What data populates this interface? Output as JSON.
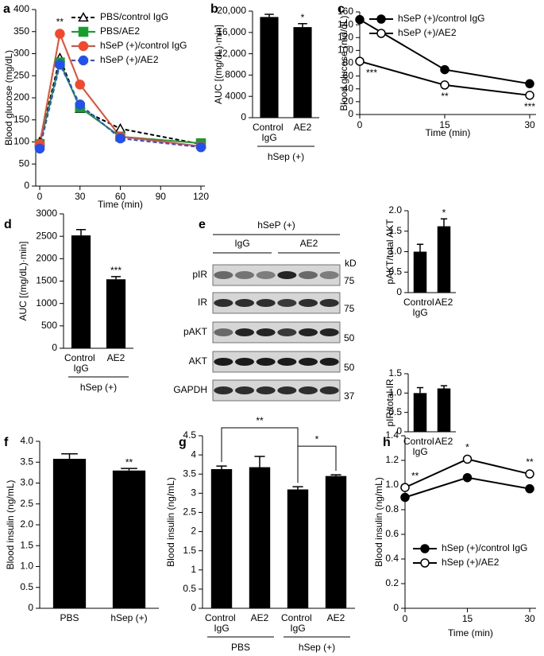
{
  "chart_data": [
    {
      "panel": "a",
      "type": "line",
      "xlabel": "Time (min)",
      "ylabel": "Blood glucose (mg/dL)",
      "x": [
        0,
        15,
        30,
        60,
        120
      ],
      "xlim": [
        0,
        120
      ],
      "xticks": [
        0,
        30,
        60,
        90,
        120
      ],
      "ylim": [
        0,
        400
      ],
      "yticks": [
        0,
        50,
        100,
        150,
        200,
        250,
        300,
        350,
        400
      ],
      "legend": "upper right",
      "series": [
        {
          "name": "PBS/control IgG",
          "color": "#000000",
          "marker": "triangle-open",
          "dashed": true,
          "values": [
            100,
            290,
            175,
            130,
            95
          ]
        },
        {
          "name": "PBS/AE2",
          "color": "#1a9b2e",
          "marker": "square",
          "dashed": false,
          "values": [
            95,
            280,
            178,
            112,
            97
          ]
        },
        {
          "name": "hSeP (+)/control IgG",
          "color": "#f4472c",
          "marker": "circle",
          "dashed": false,
          "values": [
            95,
            345,
            230,
            112,
            90
          ],
          "sig": [
            null,
            "**",
            null,
            null,
            null
          ]
        },
        {
          "name": "hSeP (+)/AE2",
          "color": "#2350f0",
          "marker": "circle",
          "dashed": true,
          "values": [
            85,
            275,
            185,
            108,
            88
          ]
        }
      ]
    },
    {
      "panel": "b",
      "type": "bar",
      "ylabel": "AUC [(mg/dL)·min]",
      "categories": [
        "Control IgG",
        "AE2"
      ],
      "values": [
        18900,
        17000
      ],
      "errors": [
        500,
        650
      ],
      "sig": [
        null,
        "*"
      ],
      "groups": [
        "hSep (+)"
      ],
      "color": "#000000",
      "ylim": [
        0,
        20000
      ],
      "yticks": [
        0,
        4000,
        8000,
        {
          "value": 12000,
          "label": "12,000"
        },
        {
          "value": 16000,
          "label": "16,000"
        },
        {
          "value": 20000,
          "label": "20,000"
        }
      ]
    },
    {
      "panel": "c",
      "type": "line",
      "xlabel": "Time (min)",
      "ylabel": "Blood glucose (md/dL)",
      "x": [
        0,
        15,
        30
      ],
      "xlim": [
        0,
        30
      ],
      "xticks": [
        0,
        15,
        30
      ],
      "ylim": [
        0,
        160
      ],
      "yticks": [
        0,
        20,
        40,
        60,
        80,
        100,
        120,
        140,
        160
      ],
      "legend": "upper right",
      "series": [
        {
          "name": "hSeP (+)/control IgG",
          "color": "#000000",
          "marker": "circle",
          "dashed": false,
          "values": [
            148,
            70,
            48
          ]
        },
        {
          "name": "hSeP (+)/AE2",
          "color": "#000000",
          "marker": "circle-open",
          "dashed": false,
          "values": [
            83,
            46,
            30
          ],
          "sig": [
            "***",
            "**",
            "***"
          ]
        }
      ]
    },
    {
      "panel": "d",
      "type": "bar",
      "ylabel": "AUC [(mg/dL)·min]",
      "categories": [
        "Control IgG",
        "AE2"
      ],
      "values": [
        2520,
        1540
      ],
      "errors": [
        130,
        60
      ],
      "sig": [
        null,
        "***"
      ],
      "groups": [
        "hSep (+)"
      ],
      "color": "#000000",
      "ylim": [
        0,
        3000
      ],
      "yticks": [
        0,
        500,
        1000,
        1500,
        2000,
        2500,
        3000
      ]
    },
    {
      "type": "bar",
      "ylabel": "pAKT/total AKT",
      "categories": [
        "Control IgG",
        "AE2"
      ],
      "values": [
        1.0,
        1.62
      ],
      "errors": [
        0.18,
        0.18
      ],
      "sig": [
        null,
        "*"
      ],
      "color": "#000000",
      "ylim": [
        0,
        2
      ],
      "yticks": [
        0,
        0.5,
        {
          "value": 1,
          "label": "1.0"
        },
        1.5,
        {
          "value": 2,
          "label": "2.0"
        }
      ]
    },
    {
      "type": "bar",
      "ylabel": "pIR/total IR",
      "categories": [
        "Control IgG",
        "AE2"
      ],
      "values": [
        1.0,
        1.12
      ],
      "errors": [
        0.14,
        0.07
      ],
      "color": "#000000",
      "ylim": [
        0,
        1.5
      ],
      "yticks": [
        0,
        0.5,
        {
          "value": 1,
          "label": "1.0"
        },
        1.5
      ]
    },
    {
      "panel": "f",
      "type": "bar",
      "ylabel": "Blood insulin (ng/mL)",
      "categories": [
        "PBS",
        "hSep (+)"
      ],
      "values": [
        3.58,
        3.3
      ],
      "errors": [
        0.12,
        0.05
      ],
      "sig": [
        null,
        "**"
      ],
      "color": "#000000",
      "ylim": [
        0,
        4
      ],
      "yticks": [
        0,
        0.5,
        {
          "value": 1,
          "label": "1.0"
        },
        1.5,
        {
          "value": 2,
          "label": "2.0"
        },
        2.5,
        {
          "value": 3,
          "label": "3.0"
        },
        3.5,
        {
          "value": 4,
          "label": "4.0"
        }
      ]
    },
    {
      "panel": "g",
      "type": "bar",
      "ylabel": "Blood insulin (ng/mL)",
      "categories": [
        "Control IgG",
        "AE2",
        "Control IgG",
        "AE2"
      ],
      "values": [
        3.63,
        3.68,
        3.1,
        3.45
      ],
      "errors": [
        0.08,
        0.28,
        0.07,
        0.03
      ],
      "groups": [
        "PBS",
        "hSep (+)"
      ],
      "color": "#000000",
      "comparisons": [
        {
          "pair": [
            0,
            2
          ],
          "label": "**"
        },
        {
          "pair": [
            2,
            3
          ],
          "label": "*"
        }
      ],
      "ylim": [
        0,
        4.5
      ],
      "yticks": [
        0,
        0.5,
        1,
        1.5,
        2,
        2.5,
        3,
        3.5,
        4,
        4.5
      ]
    },
    {
      "panel": "h",
      "type": "line",
      "xlabel": "Time (min)",
      "ylabel": "Blood insulin (ng/mL)",
      "x": [
        0,
        15,
        30
      ],
      "xlim": [
        0,
        30
      ],
      "xticks": [
        0,
        15,
        30
      ],
      "ylim": [
        0,
        1.4
      ],
      "yticks": [
        0,
        0.2,
        0.4,
        0.6,
        0.8,
        {
          "value": 1,
          "label": "1.0"
        },
        1.2,
        1.4
      ],
      "legend": "lower right",
      "series": [
        {
          "name": "hSep (+)/control IgG",
          "color": "#000000",
          "marker": "circle",
          "dashed": false,
          "values": [
            0.9,
            1.06,
            0.97
          ]
        },
        {
          "name": "hSep (+)/AE2",
          "color": "#000000",
          "marker": "circle-open",
          "dashed": false,
          "values": [
            0.98,
            1.21,
            1.09
          ],
          "sig": [
            "**",
            "*",
            "**"
          ]
        }
      ]
    }
  ],
  "blot": {
    "panel": "e",
    "group_label": "hSeP (+)",
    "lanes": [
      "IgG",
      "AE2"
    ],
    "rows": [
      "pIR",
      "IR",
      "pAKT",
      "AKT",
      "GAPDH"
    ],
    "unit": "kD",
    "markers": [
      75,
      75,
      50,
      50,
      37
    ]
  }
}
